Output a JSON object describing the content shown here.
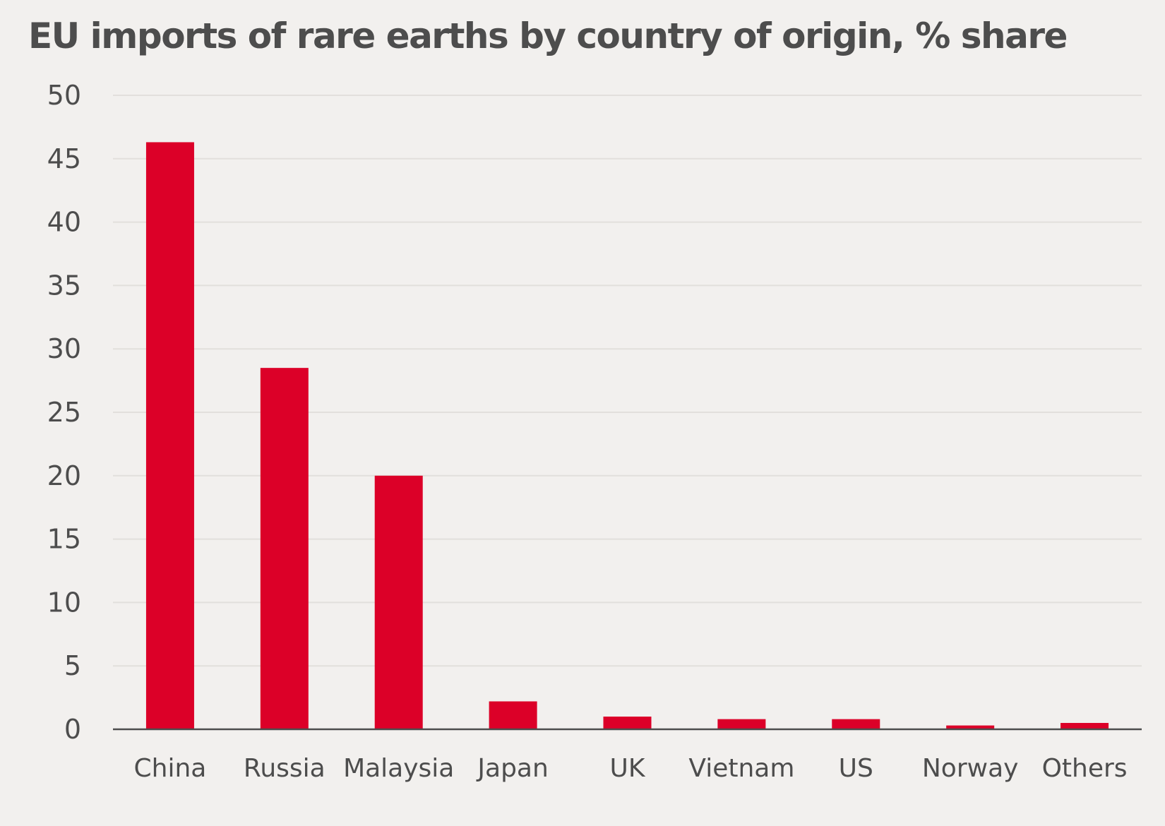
{
  "chart_data": {
    "type": "bar",
    "title": "EU imports of rare earths by country of origin, % share",
    "xlabel": "",
    "ylabel": "",
    "categories": [
      "China",
      "Russia",
      "Malaysia",
      "Japan",
      "UK",
      "Vietnam",
      "US",
      "Norway",
      "Others"
    ],
    "values": [
      46.3,
      28.5,
      20.0,
      2.2,
      1.0,
      0.8,
      0.8,
      0.3,
      0.5
    ],
    "ylim": [
      0,
      50
    ],
    "yticks": [
      0,
      5,
      10,
      15,
      20,
      25,
      30,
      35,
      40,
      45,
      50
    ],
    "grid": true,
    "legend": "none",
    "bar_color": "#dc0028"
  }
}
